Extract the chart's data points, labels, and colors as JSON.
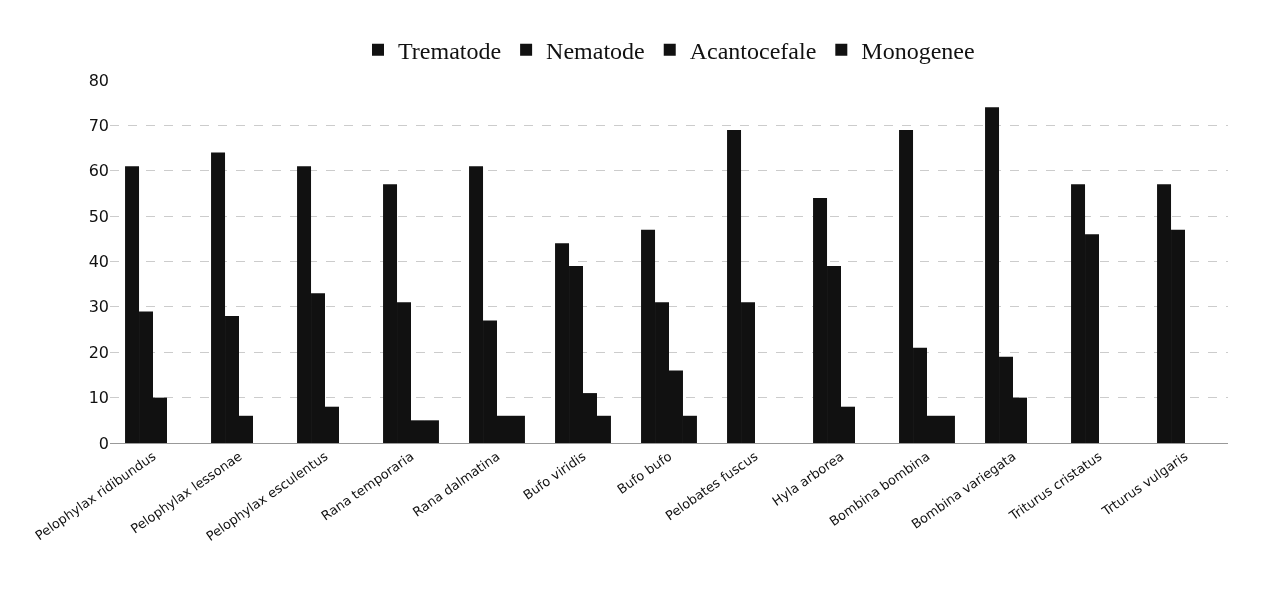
{
  "chart_data": {
    "type": "bar",
    "categories": [
      "Pelophylax ridibundus",
      "Pelophylax lessonae",
      "Pelophylax esculentus",
      "Rana temporaria",
      "Rana dalmatina",
      "Bufo viridis",
      "Bufo bufo",
      "Pelobates fuscus",
      "Hyla arborea",
      "Bombina bombina",
      "Bombina variegata",
      "Triturus cristatus",
      "Trturus vulgaris"
    ],
    "series": [
      {
        "name": "Trematode",
        "color": "#111111",
        "values": [
          61,
          64,
          61,
          57,
          61,
          44,
          47,
          69,
          54,
          69,
          74,
          57,
          57
        ]
      },
      {
        "name": "Nematode",
        "color": "#111111",
        "values": [
          29,
          28,
          33,
          31,
          27,
          39,
          31,
          31,
          39,
          21,
          19,
          46,
          47
        ]
      },
      {
        "name": "Acantocefale",
        "color": "#111111",
        "values": [
          10,
          6,
          8,
          5,
          6,
          11,
          16,
          null,
          8,
          6,
          10,
          null,
          null
        ]
      },
      {
        "name": "Monogenee",
        "color": "#111111",
        "values": [
          null,
          null,
          null,
          5,
          6,
          6,
          6,
          null,
          null,
          6,
          null,
          null,
          null
        ]
      }
    ],
    "ylim": [
      0,
      80
    ],
    "yticks": [
      0,
      10,
      20,
      30,
      40,
      50,
      60,
      70,
      80
    ],
    "grid": "y",
    "legend": "top"
  }
}
